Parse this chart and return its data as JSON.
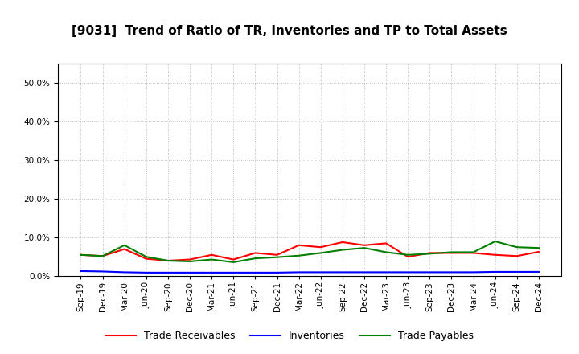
{
  "title": "[9031]  Trend of Ratio of TR, Inventories and TP to Total Assets",
  "x_labels": [
    "Sep-19",
    "Dec-19",
    "Mar-20",
    "Jun-20",
    "Sep-20",
    "Dec-20",
    "Mar-21",
    "Jun-21",
    "Sep-21",
    "Dec-21",
    "Mar-22",
    "Jun-22",
    "Sep-22",
    "Dec-22",
    "Mar-23",
    "Jun-23",
    "Sep-23",
    "Dec-23",
    "Mar-24",
    "Jun-24",
    "Sep-24",
    "Dec-24"
  ],
  "trade_receivables": [
    0.055,
    0.052,
    0.07,
    0.045,
    0.04,
    0.043,
    0.055,
    0.043,
    0.06,
    0.055,
    0.08,
    0.075,
    0.088,
    0.08,
    0.085,
    0.05,
    0.06,
    0.06,
    0.06,
    0.055,
    0.052,
    0.063
  ],
  "inventories": [
    0.013,
    0.012,
    0.01,
    0.009,
    0.009,
    0.009,
    0.009,
    0.009,
    0.009,
    0.009,
    0.01,
    0.01,
    0.01,
    0.01,
    0.01,
    0.01,
    0.01,
    0.01,
    0.01,
    0.011,
    0.011,
    0.011
  ],
  "trade_payables": [
    0.055,
    0.052,
    0.08,
    0.05,
    0.04,
    0.038,
    0.043,
    0.036,
    0.046,
    0.049,
    0.053,
    0.06,
    0.068,
    0.073,
    0.062,
    0.055,
    0.058,
    0.062,
    0.062,
    0.09,
    0.075,
    0.073
  ],
  "ylim": [
    0.0,
    0.55
  ],
  "yticks": [
    0.0,
    0.1,
    0.2,
    0.3,
    0.4,
    0.5
  ],
  "color_tr": "#ff0000",
  "color_inv": "#0000ff",
  "color_tp": "#008000",
  "legend_labels": [
    "Trade Receivables",
    "Inventories",
    "Trade Payables"
  ],
  "background_color": "#ffffff",
  "grid_color": "#b0b0b0",
  "title_fontsize": 11,
  "tick_fontsize": 7.5,
  "legend_fontsize": 9,
  "linewidth": 1.5
}
